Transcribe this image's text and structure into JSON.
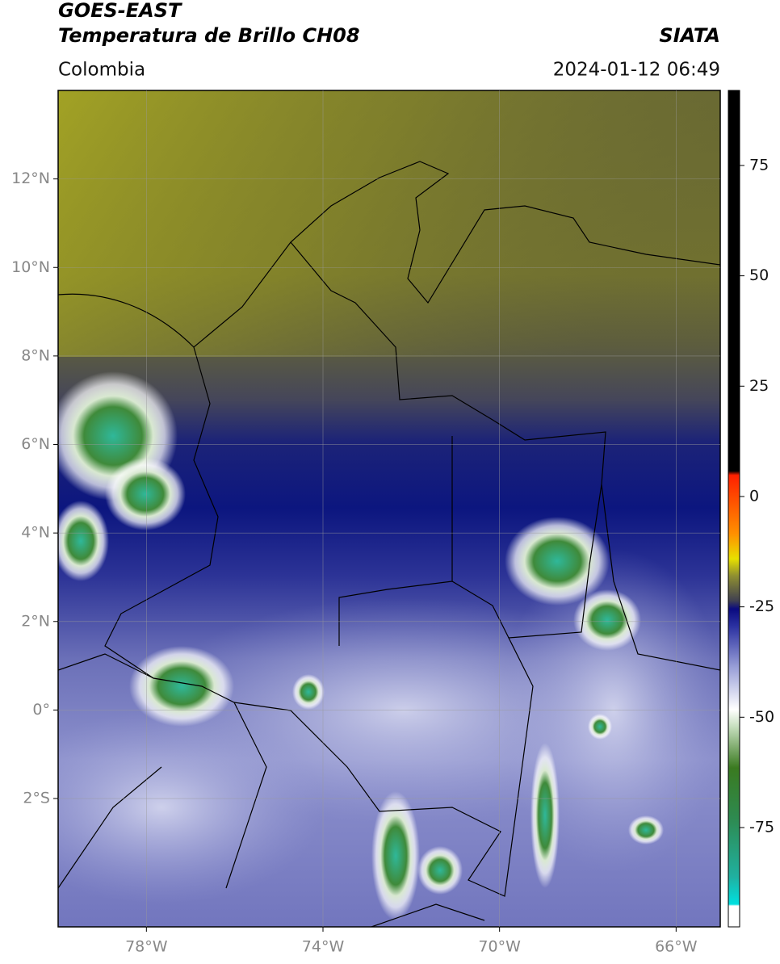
{
  "header": {
    "title": "GOES-EAST",
    "subtitle": "Temperatura de Brillo CH08",
    "organization": "SIATA",
    "region": "Colombia",
    "timestamp": "2024-01-12 06:49"
  },
  "map": {
    "lon_range": [
      -80,
      -65
    ],
    "lat_range": [
      -4.9,
      14
    ],
    "lon_ticks": [
      {
        "value": -78,
        "label": "78°W"
      },
      {
        "value": -74,
        "label": "74°W"
      },
      {
        "value": -70,
        "label": "70°W"
      },
      {
        "value": -66,
        "label": "66°W"
      }
    ],
    "lat_ticks": [
      {
        "value": 12,
        "label": "12°N"
      },
      {
        "value": 10,
        "label": "10°N"
      },
      {
        "value": 8,
        "label": "8°N"
      },
      {
        "value": 6,
        "label": "6°N"
      },
      {
        "value": 4,
        "label": "4°N"
      },
      {
        "value": 2,
        "label": "2°N"
      },
      {
        "value": 0,
        "label": "0°"
      },
      {
        "value": -2,
        "label": "2°S"
      }
    ]
  },
  "colorbar": {
    "range": [
      -97.5,
      92
    ],
    "ticks": [
      75,
      50,
      25,
      0,
      -25,
      -50,
      -75
    ]
  }
}
